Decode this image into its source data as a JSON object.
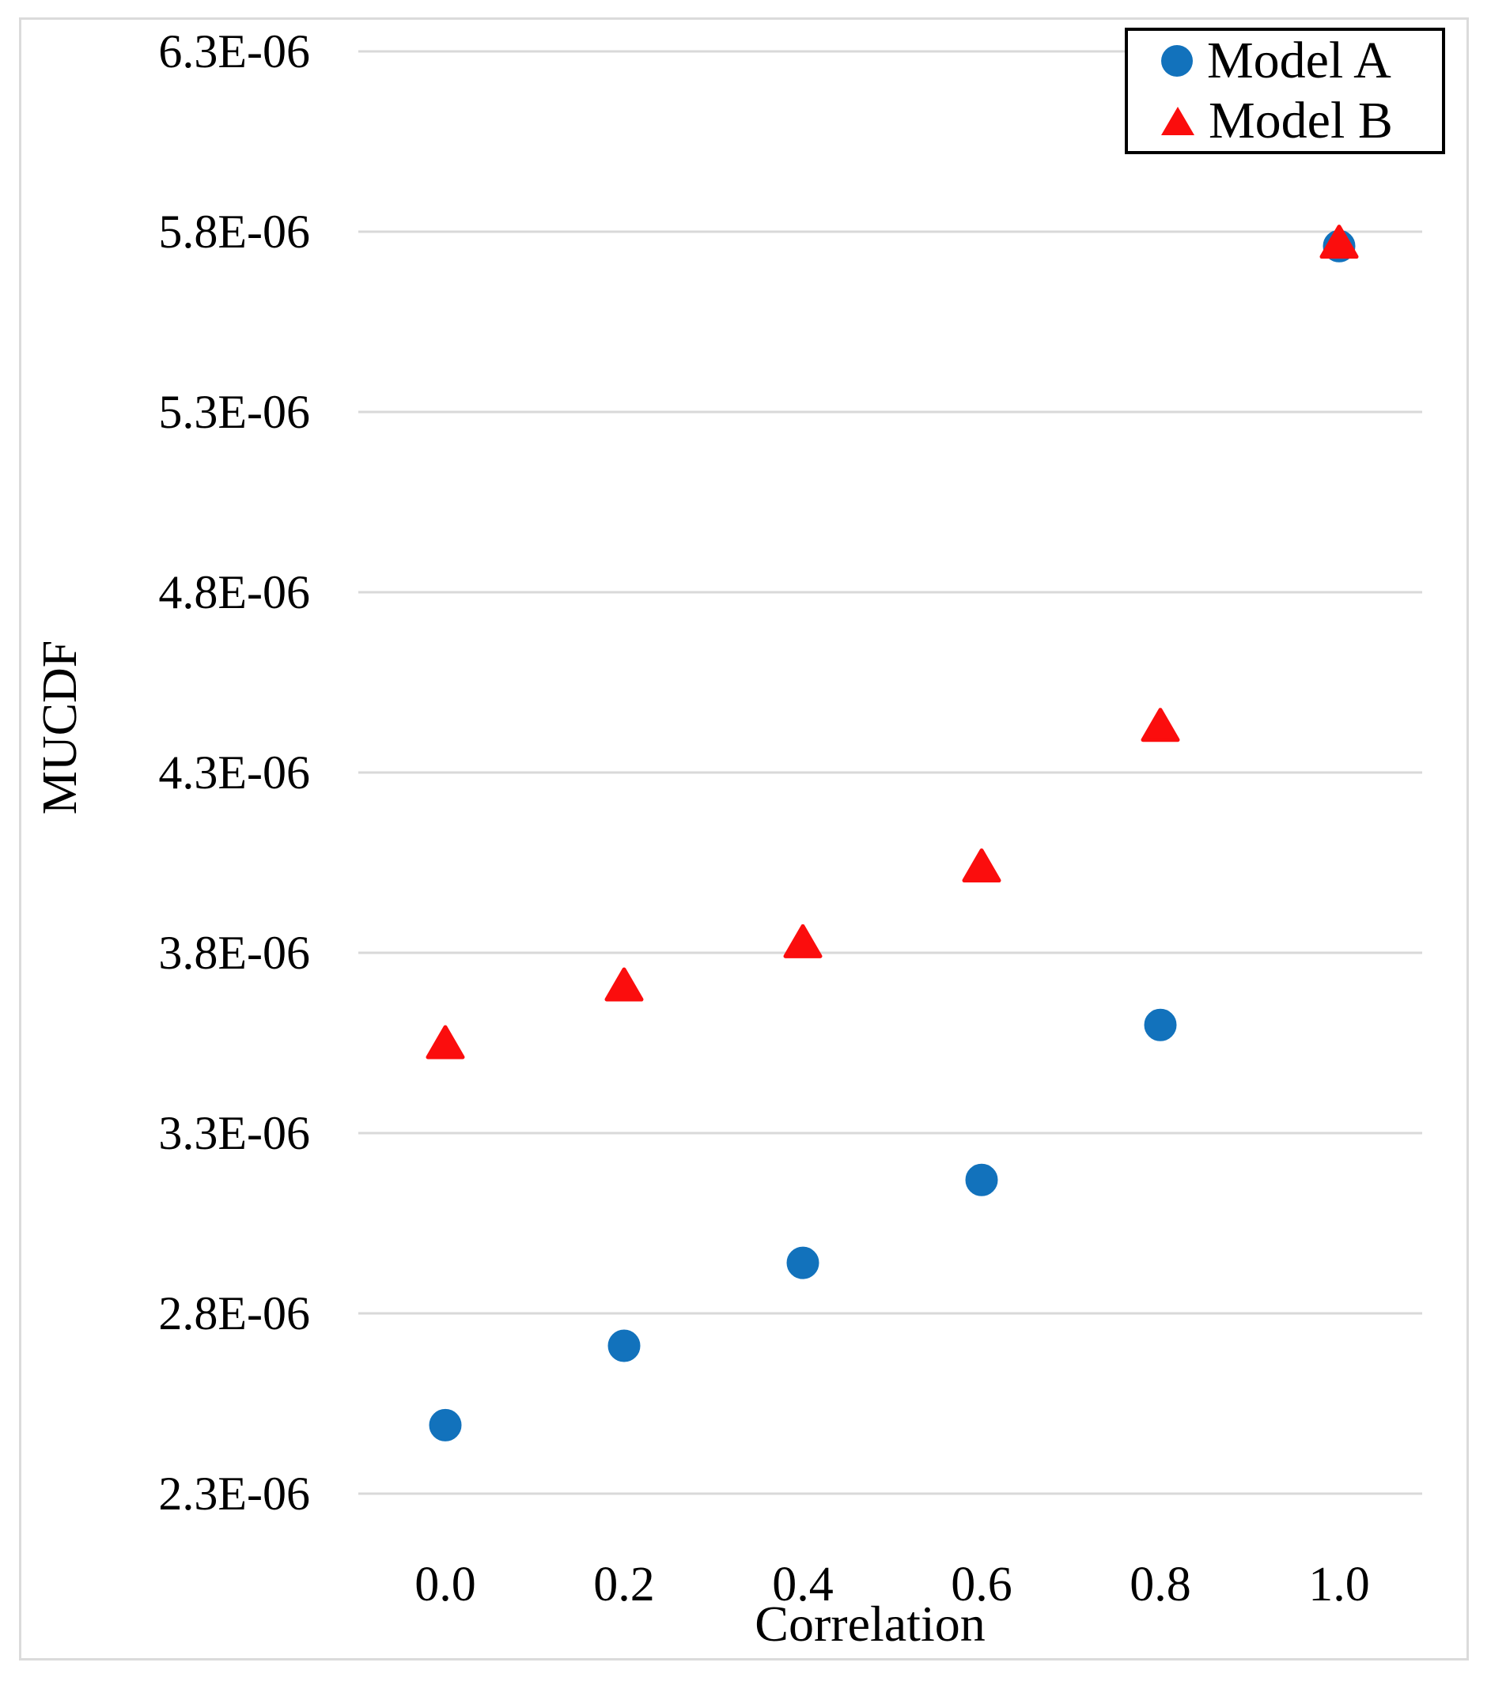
{
  "chart_data": {
    "type": "scatter",
    "title": "",
    "xlabel": "Correlation",
    "ylabel": "MUCDF",
    "x": [
      0.0,
      0.2,
      0.4,
      0.6,
      0.8,
      1.0
    ],
    "x_tick_labels": [
      "0.0",
      "0.2",
      "0.4",
      "0.6",
      "0.8",
      "1.0"
    ],
    "y_tick_labels": [
      "6.3E-06",
      "5.8E-06",
      "5.3E-06",
      "4.8E-06",
      "4.3E-06",
      "3.8E-06",
      "3.3E-06",
      "2.8E-06",
      "2.3E-06"
    ],
    "ylim": [
      2.3e-06,
      6.3e-06
    ],
    "xlim": [
      -0.1,
      1.1
    ],
    "grid": true,
    "legend_position": "top-right",
    "series": [
      {
        "name": "Model A",
        "marker": "circle",
        "color": "#1272BC",
        "values": [
          2.49e-06,
          2.71e-06,
          2.94e-06,
          3.17e-06,
          3.6e-06,
          5.76e-06
        ]
      },
      {
        "name": "Model B",
        "marker": "triangle",
        "color": "#FB0D0D",
        "values": [
          3.55e-06,
          3.71e-06,
          3.83e-06,
          4.04e-06,
          4.43e-06,
          5.77e-06
        ]
      }
    ],
    "colors": {
      "gridline": "#D9D9D9",
      "figure_border": "#DBDBDB",
      "legend_border": "#000000",
      "text": "#000000"
    }
  }
}
